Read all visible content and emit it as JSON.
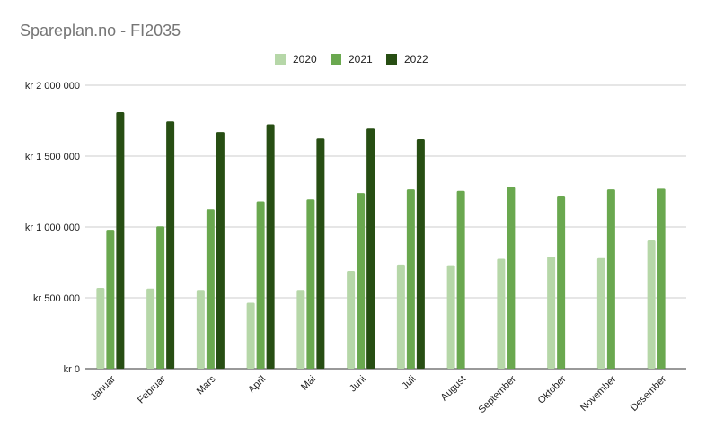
{
  "chart_data": {
    "type": "bar",
    "title": "Spareplan.no - FI2035",
    "xlabel": "",
    "ylabel": "",
    "ylim": [
      0,
      2000000
    ],
    "grid": true,
    "legend": "top-center",
    "yticks": [
      {
        "value": 0,
        "label": "kr   0"
      },
      {
        "value": 500000,
        "label": "kr  500 000"
      },
      {
        "value": 1000000,
        "label": "kr 1 000 000"
      },
      {
        "value": 1500000,
        "label": "kr 1 500 000"
      },
      {
        "value": 2000000,
        "label": "kr 2 000 000"
      }
    ],
    "categories": [
      "Januar",
      "Februar",
      "Mars",
      "April",
      "Mai",
      "Juni",
      "Juli",
      "August",
      "September",
      "Oktober",
      "November",
      "Desember"
    ],
    "series": [
      {
        "name": "2020",
        "color": "#b6d7a8",
        "values": [
          570000,
          565000,
          555000,
          465000,
          555000,
          690000,
          735000,
          730000,
          775000,
          790000,
          780000,
          905000
        ]
      },
      {
        "name": "2021",
        "color": "#6aa84f",
        "values": [
          980000,
          1005000,
          1125000,
          1180000,
          1195000,
          1240000,
          1265000,
          1255000,
          1280000,
          1215000,
          1265000,
          1270000
        ]
      },
      {
        "name": "2022",
        "color": "#274e13",
        "values": [
          1810000,
          1745000,
          1670000,
          1725000,
          1625000,
          1695000,
          1620000,
          null,
          null,
          null,
          null,
          null
        ]
      }
    ]
  }
}
